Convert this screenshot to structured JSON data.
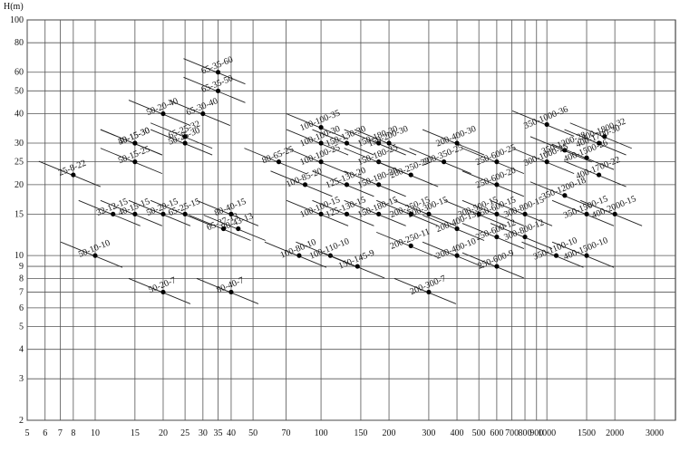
{
  "chart_data": {
    "type": "scatter",
    "y_label": "H(m)",
    "log_x": true,
    "log_y": true,
    "grid": true,
    "color": "#000000",
    "xlim": [
      5,
      3000
    ],
    "ylim": [
      2,
      100
    ],
    "xticks": [
      5,
      6,
      7,
      8,
      10,
      15,
      20,
      25,
      30,
      35,
      40,
      50,
      70,
      100,
      150,
      200,
      300,
      400,
      500,
      600,
      700,
      800,
      900,
      1000,
      1500,
      2000,
      3000
    ],
    "yticks": [
      2,
      3,
      4,
      5,
      6,
      7,
      8,
      9,
      10,
      15,
      20,
      25,
      30,
      40,
      50,
      60,
      80,
      100
    ],
    "labels": [
      "25-8-22",
      "50-10-10",
      "32-12-15",
      "40-15-15",
      "50-15-25",
      "40-15-30",
      "50-15-30",
      "50-20-40",
      "50-20-15",
      "50-20-7",
      "65-25-15",
      "50-25-30",
      "65-25-32",
      "65-35-60",
      "65-35-50",
      "65-30-40",
      "65-37-13",
      "80-40-15",
      "80-43-13",
      "80-40-7",
      "80-65-25",
      "100-100-35",
      "100-100-30",
      "100-100-25",
      "100-85-20",
      "100-100-15",
      "100-80-10",
      "100-110-10",
      "150-130-30",
      "150-180-30",
      "150-200-30",
      "150-180-25",
      "125-130-20",
      "125-130-15",
      "150-180-20",
      "150-180-15",
      "150-145-9",
      "200-250-22",
      "200-250-15",
      "200-300-15",
      "200-250-11",
      "200-300-7",
      "200-400-30",
      "200-350-25",
      "200-400-13",
      "200-400-10",
      "250-600-25",
      "250-600-20",
      "250-600-15",
      "250-600-12",
      "250-600-9",
      "300-500-15",
      "300-1000-25",
      "350-1000-36",
      "350-1200-28",
      "400-1500-26",
      "400-1800-32",
      "400-1700-30",
      "400-1700-22",
      "350-1200-18",
      "300-800-15",
      "300-800-12",
      "350-1500-15",
      "400-2000-15",
      "400-1500-10",
      "350-1100-10"
    ],
    "x": [
      8,
      10,
      12,
      15,
      15,
      15,
      15,
      20,
      20,
      20,
      25,
      25,
      25,
      35,
      35,
      30,
      37,
      40,
      43,
      40,
      65,
      100,
      100,
      100,
      85,
      100,
      80,
      110,
      130,
      180,
      200,
      180,
      130,
      130,
      180,
      180,
      145,
      250,
      250,
      300,
      250,
      300,
      400,
      350,
      400,
      400,
      600,
      600,
      600,
      600,
      600,
      500,
      1000,
      1000,
      1200,
      1500,
      1800,
      1700,
      1700,
      1200,
      800,
      800,
      1500,
      2000,
      1500,
      1100
    ],
    "values": [
      22,
      10,
      15,
      15,
      25,
      30,
      30,
      40,
      15,
      7,
      15,
      30,
      32,
      60,
      50,
      40,
      13,
      15,
      13,
      7,
      25,
      35,
      30,
      25,
      20,
      15,
      10,
      10,
      30,
      30,
      30,
      25,
      20,
      15,
      20,
      15,
      9,
      22,
      15,
      15,
      11,
      7,
      30,
      25,
      13,
      10,
      25,
      20,
      15,
      12,
      9,
      15,
      25,
      36,
      28,
      26,
      32,
      30,
      22,
      18,
      15,
      12,
      15,
      15,
      10,
      10
    ]
  }
}
